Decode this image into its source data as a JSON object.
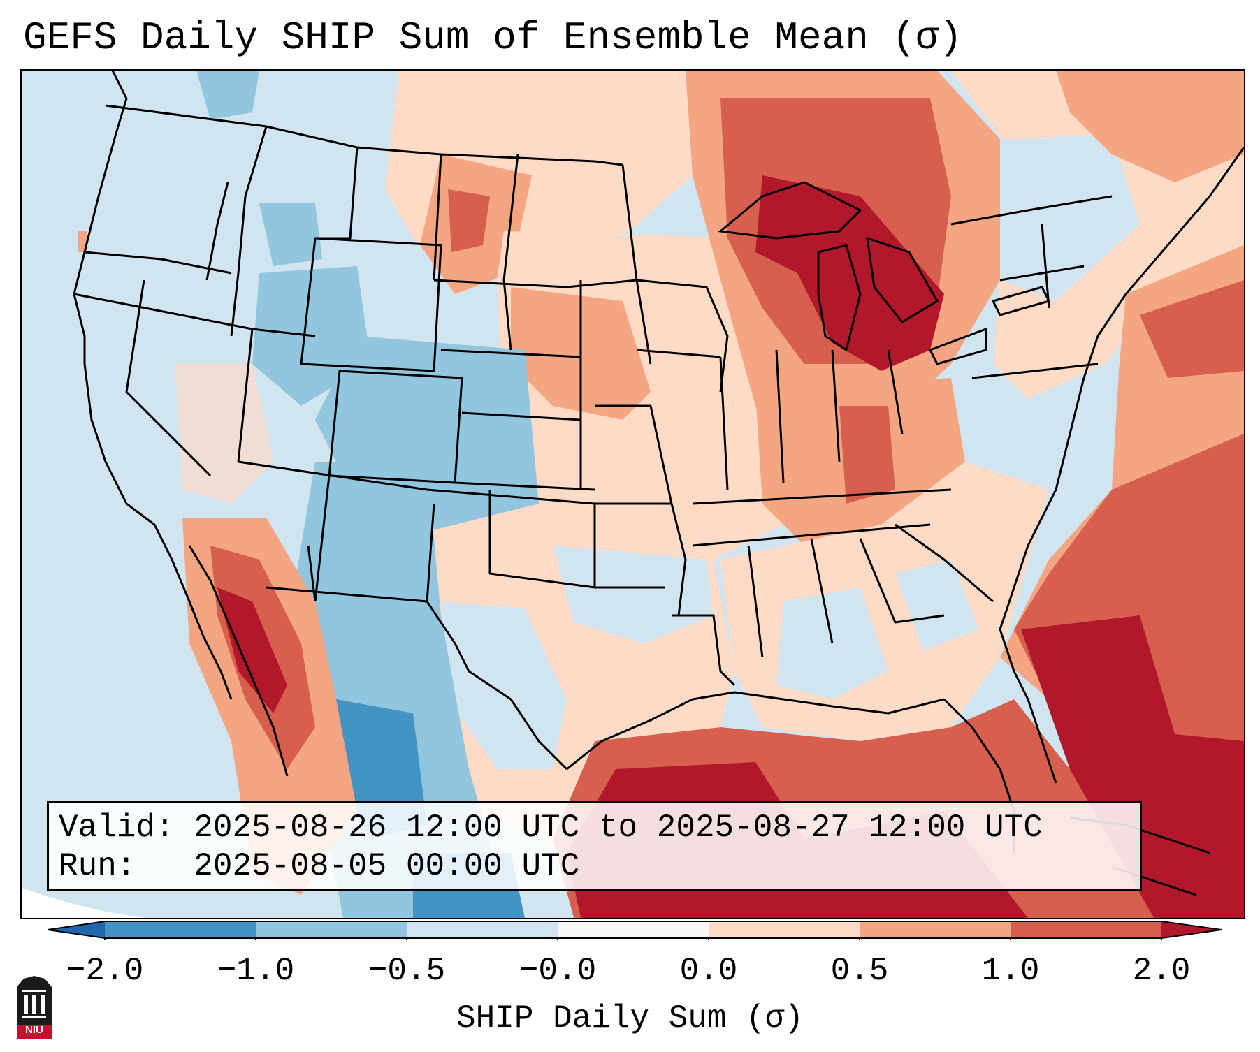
{
  "title": "GEFS Daily SHIP Sum of Ensemble Mean (σ)",
  "info": {
    "valid_line": "Valid: 2025-08-26 12:00 UTC to 2025-08-27 12:00 UTC",
    "run_line": "Run:   2025-08-05 00:00 UTC"
  },
  "colorbar": {
    "label": "SHIP Daily Sum (σ)",
    "ticks": [
      "−2.0",
      "−1.0",
      "−0.5",
      "−0.0",
      "0.0",
      "0.5",
      "1.0",
      "2.0"
    ],
    "bins": [
      {
        "range": "< -2.0",
        "color": "#2166ac"
      },
      {
        "range": "-2.0 to -1.0",
        "color": "#4393c3"
      },
      {
        "range": "-1.0 to -0.5",
        "color": "#92c5de"
      },
      {
        "range": "-0.5 to -0.0",
        "color": "#d1e5f0"
      },
      {
        "range": "0.0",
        "color": "#f7f7f7"
      },
      {
        "range": "0.0 to 0.5",
        "color": "#fddbc7"
      },
      {
        "range": "0.5 to 1.0",
        "color": "#f4a582"
      },
      {
        "range": "1.0 to 2.0",
        "color": "#d6604d"
      },
      {
        "range": "> 2.0",
        "color": "#b2182b"
      }
    ]
  },
  "logo": {
    "text": "NIU",
    "colors": {
      "tower": "#1a1a1a",
      "band": "#c8102e"
    }
  },
  "map": {
    "region": "Contiguous United States and surrounding areas",
    "field": "SHIP daily sum anomaly (sigma)",
    "features": [
      "state borders",
      "coastlines",
      "Great Lakes",
      "Gulf of Mexico",
      "Atlantic Ocean",
      "Pacific Ocean"
    ]
  }
}
